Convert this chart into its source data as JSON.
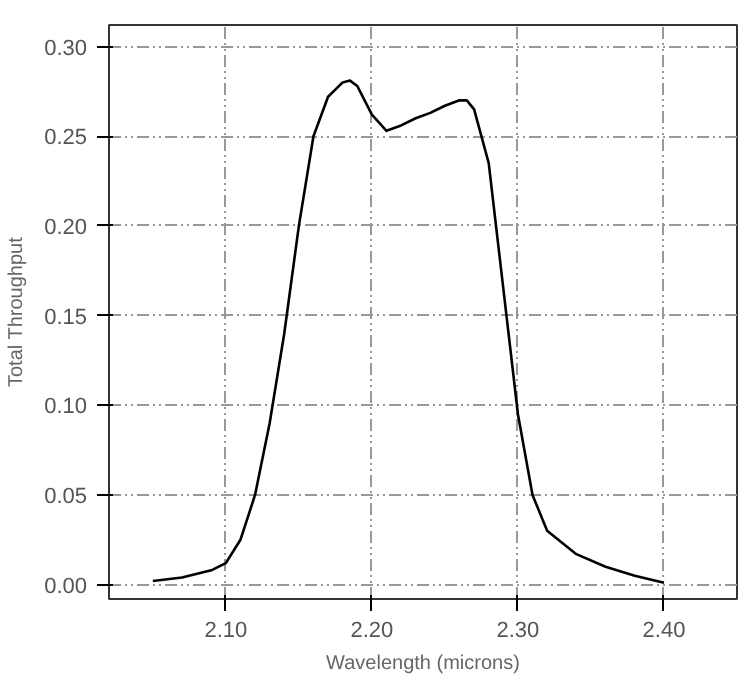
{
  "chart_data": {
    "type": "line",
    "xlabel": "Wavelength (microns)",
    "ylabel": "Total Throughput",
    "x": [
      2.05,
      2.07,
      2.09,
      2.1,
      2.11,
      2.12,
      2.13,
      2.14,
      2.15,
      2.16,
      2.17,
      2.18,
      2.185,
      2.19,
      2.2,
      2.21,
      2.22,
      2.23,
      2.24,
      2.25,
      2.26,
      2.265,
      2.27,
      2.28,
      2.29,
      2.3,
      2.31,
      2.32,
      2.34,
      2.36,
      2.38,
      2.4
    ],
    "series": [
      {
        "color": "#000000",
        "values": [
          0.002,
          0.004,
          0.008,
          0.012,
          0.025,
          0.05,
          0.09,
          0.14,
          0.2,
          0.25,
          0.272,
          0.28,
          0.281,
          0.278,
          0.262,
          0.253,
          0.256,
          0.26,
          0.263,
          0.267,
          0.27,
          0.27,
          0.265,
          0.235,
          0.165,
          0.095,
          0.05,
          0.03,
          0.017,
          0.01,
          0.005,
          0.001
        ]
      }
    ],
    "xlim": [
      2.02,
      2.45
    ],
    "ylim": [
      -0.008,
      0.312
    ],
    "xticks": [
      {
        "value": 2.1,
        "label": "2.10"
      },
      {
        "value": 2.2,
        "label": "2.20"
      },
      {
        "value": 2.3,
        "label": "2.30"
      },
      {
        "value": 2.4,
        "label": "2.40"
      }
    ],
    "yticks": [
      {
        "value": 0,
        "label": "0.00"
      },
      {
        "value": 0.05,
        "label": "0.05"
      },
      {
        "value": 0.1,
        "label": "0.10"
      },
      {
        "value": 0.15,
        "label": "0.15"
      },
      {
        "value": 0.2,
        "label": "0.20"
      },
      {
        "value": 0.25,
        "label": "0.25"
      },
      {
        "value": 0.3,
        "label": "0.30"
      }
    ],
    "grid": true,
    "line_style": "solid"
  }
}
